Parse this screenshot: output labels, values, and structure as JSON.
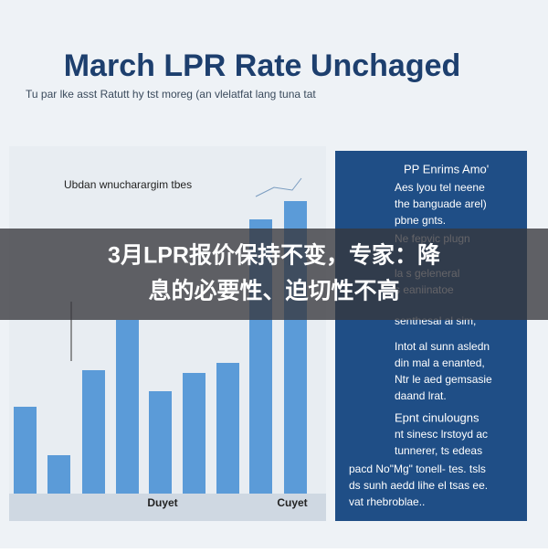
{
  "header": {
    "title": "March LPR Rate Unchaged",
    "subtitle": "Tu par lke asst Ratutt hy tst moreg (an vlelatfat lang tuna tat"
  },
  "chart": {
    "label": "Ubdan wnucharargim tbes",
    "x_labels": [
      "Duyet",
      "Cuyet"
    ]
  },
  "panel": {
    "lines": [
      "PP Enrims Amo'",
      "Aes lyou tel neene",
      "the banguade arel)",
      "pbne gnts.",
      "Ne fepvic plugn",
      "la s geleneral",
      "s eaniinatoe",
      "senthesal al sim,",
      "Intot al sunn asledn",
      "din mal a enanted,",
      "Ntr le aed gemsasie",
      "daand lrat.",
      "Epnt cinulougns",
      "nt sinesc lrstoyd ac",
      "tunnerer, ts edeas",
      "pacd No\"Mg\" tonell- tes. tsls",
      "ds sunh aedd lihe el tsas ee.",
      "vat rhebroblae.."
    ]
  },
  "banner": {
    "lines": [
      "3月LPR报价保持不变，专家：降",
      "息的必要性、迫切性不高"
    ]
  }
}
